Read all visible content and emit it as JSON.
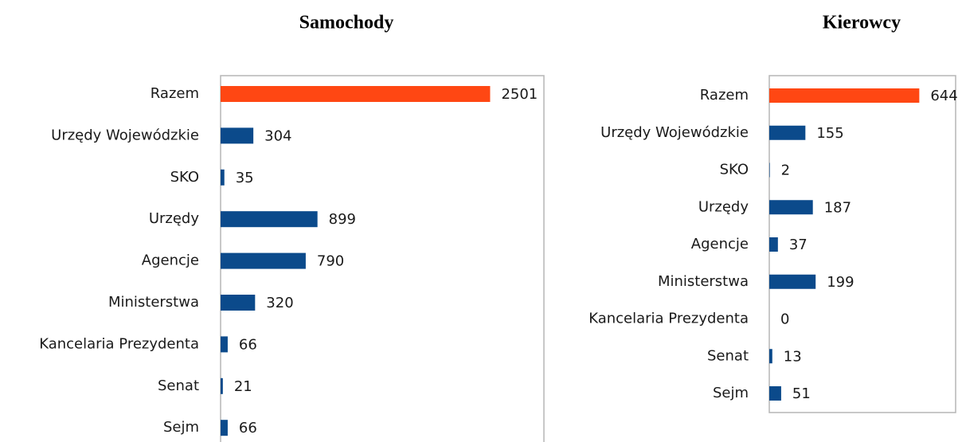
{
  "chart_data": [
    {
      "type": "bar",
      "orientation": "horizontal",
      "title": "Samochody",
      "categories": [
        "Razem",
        "Urzędy Wojewódzkie",
        "SKO",
        "Urzędy",
        "Agencje",
        "Ministerstwa",
        "Kancelaria Prezydenta",
        "Senat",
        "Sejm"
      ],
      "values": [
        2501,
        304,
        35,
        899,
        790,
        320,
        66,
        21,
        66
      ],
      "colors": [
        "#ff4713",
        "#0b4a8b",
        "#0b4a8b",
        "#0b4a8b",
        "#0b4a8b",
        "#0b4a8b",
        "#0b4a8b",
        "#0b4a8b",
        "#0b4a8b"
      ],
      "xlim": [
        0,
        3000
      ]
    },
    {
      "type": "bar",
      "orientation": "horizontal",
      "title": "Kierowcy",
      "categories": [
        "Razem",
        "Urzędy Wojewódzkie",
        "SKO",
        "Urzędy",
        "Agencje",
        "Ministerstwa",
        "Kancelaria Prezydenta",
        "Senat",
        "Sejm"
      ],
      "values": [
        644,
        155,
        2,
        187,
        37,
        199,
        0,
        13,
        51
      ],
      "colors": [
        "#ff4713",
        "#0b4a8b",
        "#0b4a8b",
        "#0b4a8b",
        "#0b4a8b",
        "#0b4a8b",
        "#0b4a8b",
        "#0b4a8b",
        "#0b4a8b"
      ],
      "xlim": [
        0,
        800
      ]
    }
  ]
}
